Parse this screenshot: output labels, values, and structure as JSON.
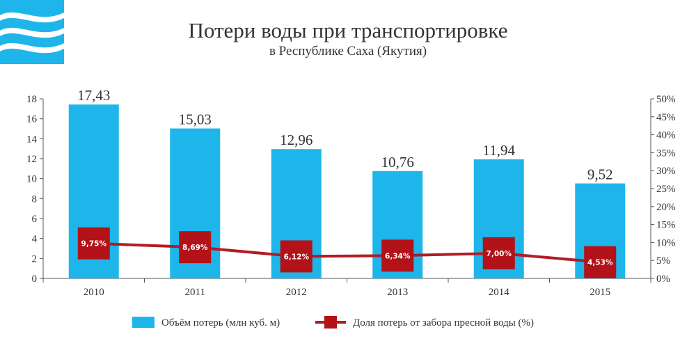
{
  "title": "Потери воды при транспортировке",
  "subtitle": "в Республике Саха (Якутия)",
  "colors": {
    "bar": "#1eb5ea",
    "line": "#b41c24",
    "marker": "#b21218",
    "logo": "#1eb5ea"
  },
  "chart_data": {
    "type": "bar",
    "categories": [
      "2010",
      "2011",
      "2012",
      "2013",
      "2014",
      "2015"
    ],
    "series": [
      {
        "name": "Объём потерь (млн куб. м)",
        "type": "bar",
        "axis": "left",
        "values": [
          17.43,
          15.03,
          12.96,
          10.76,
          11.94,
          9.52
        ],
        "labels": [
          "17,43",
          "15,03",
          "12,96",
          "10,76",
          "11,94",
          "9,52"
        ]
      },
      {
        "name": "Доля потерь от забора пресной воды (%)",
        "type": "line",
        "axis": "right",
        "values": [
          9.75,
          8.69,
          6.12,
          6.34,
          7.0,
          4.53
        ],
        "labels": [
          "9,75%",
          "8,69%",
          "6,12%",
          "6,34%",
          "7,00%",
          "4,53%"
        ]
      }
    ],
    "y_left": {
      "ylim": [
        0,
        18
      ],
      "ticks": [
        0,
        2,
        4,
        6,
        8,
        10,
        12,
        14,
        16,
        18
      ],
      "tick_labels": [
        "0",
        "2",
        "4",
        "6",
        "8",
        "10",
        "12",
        "14",
        "16",
        "18"
      ]
    },
    "y_right": {
      "ylim": [
        0,
        50
      ],
      "ticks": [
        0,
        5,
        10,
        15,
        20,
        25,
        30,
        35,
        40,
        45,
        50
      ],
      "tick_labels": [
        "0%",
        "5%",
        "10%",
        "15%",
        "20%",
        "25%",
        "30%",
        "35%",
        "40%",
        "45%",
        "50%"
      ]
    },
    "grid": false,
    "legend_position": "bottom"
  }
}
